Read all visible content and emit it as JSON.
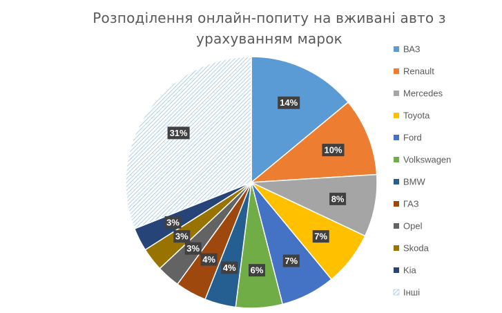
{
  "chart_data": {
    "type": "pie",
    "title_lines": [
      "Розподілення онлайн-попиту на вживані авто з",
      "урахуванням марок"
    ],
    "legend_position": "right",
    "slices": [
      {
        "label": "ВАЗ",
        "value": 14,
        "display": "14%",
        "color": "#5B9BD5"
      },
      {
        "label": "Renault",
        "value": 10,
        "display": "10%",
        "color": "#ED7D31"
      },
      {
        "label": "Mercedes",
        "value": 8,
        "display": "8%",
        "color": "#A5A5A5"
      },
      {
        "label": "Toyota",
        "value": 7,
        "display": "7%",
        "color": "#FFC000"
      },
      {
        "label": "Ford",
        "value": 7,
        "display": "7%",
        "color": "#4472C4"
      },
      {
        "label": "Volkswagen",
        "value": 6,
        "display": "6%",
        "color": "#70AD47"
      },
      {
        "label": "BMW",
        "value": 4,
        "display": "4%",
        "color": "#255E91"
      },
      {
        "label": "ГАЗ",
        "value": 4,
        "display": "4%",
        "color": "#9E480E"
      },
      {
        "label": "Opel",
        "value": 3,
        "display": "3%",
        "color": "#636363"
      },
      {
        "label": "Skoda",
        "value": 3,
        "display": "3%",
        "color": "#997300"
      },
      {
        "label": "Kia",
        "value": 3,
        "display": "3%",
        "color": "#264478"
      },
      {
        "label": "Інші",
        "value": 31,
        "display": "31%",
        "color": "#9DC3E6",
        "pattern": "diagonal-hatch"
      }
    ]
  }
}
